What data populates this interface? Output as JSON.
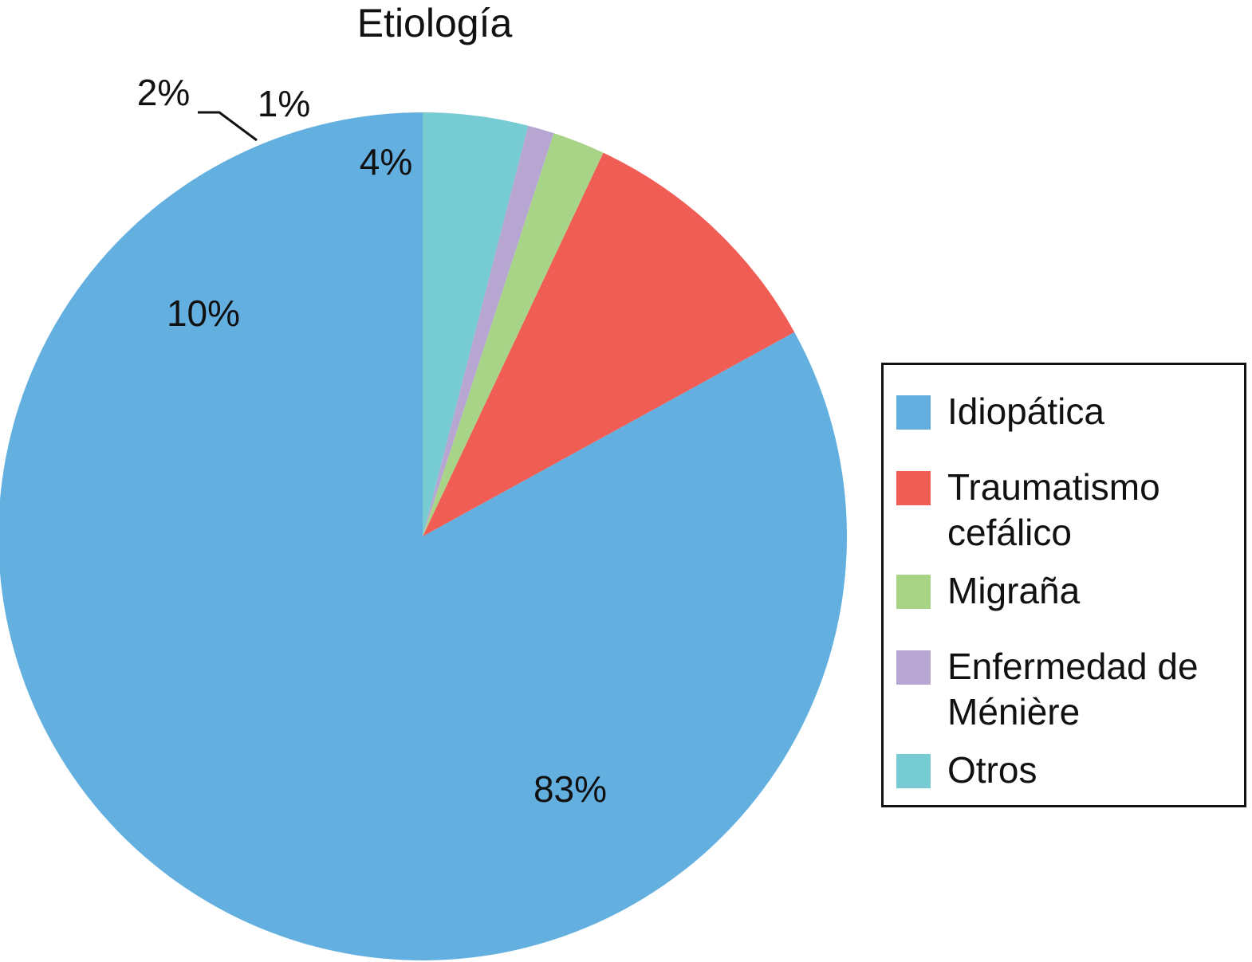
{
  "chart_data": {
    "type": "pie",
    "title": "Etiología",
    "start_angle_deg": 0,
    "direction": "counterclockwise",
    "slices": [
      {
        "name": "Idiopática",
        "value": 83,
        "label": "83%",
        "color": "#63b0e0"
      },
      {
        "name": "Traumatismo cefálico",
        "value": 10,
        "label": "10%",
        "color": "#f05d54"
      },
      {
        "name": "Migraña",
        "value": 2,
        "label": "2%",
        "color": "#a7d486"
      },
      {
        "name": "Enfermedad de Ménière",
        "value": 1,
        "label": "1%",
        "color": "#b8a6d2"
      },
      {
        "name": "Otros",
        "value": 4,
        "label": "4%",
        "color": "#77cbd3"
      }
    ],
    "legend": {
      "position": "right",
      "entries": [
        {
          "lines": [
            "Idiopática"
          ],
          "color": "#63b0e0"
        },
        {
          "lines": [
            "Traumatismo",
            "cefálico"
          ],
          "color": "#f05d54"
        },
        {
          "lines": [
            "Migraña"
          ],
          "color": "#a7d486"
        },
        {
          "lines": [
            "Enfermedad de",
            "Ménière"
          ],
          "color": "#b8a6d2"
        },
        {
          "lines": [
            "Otros"
          ],
          "color": "#77cbd3"
        }
      ]
    }
  }
}
